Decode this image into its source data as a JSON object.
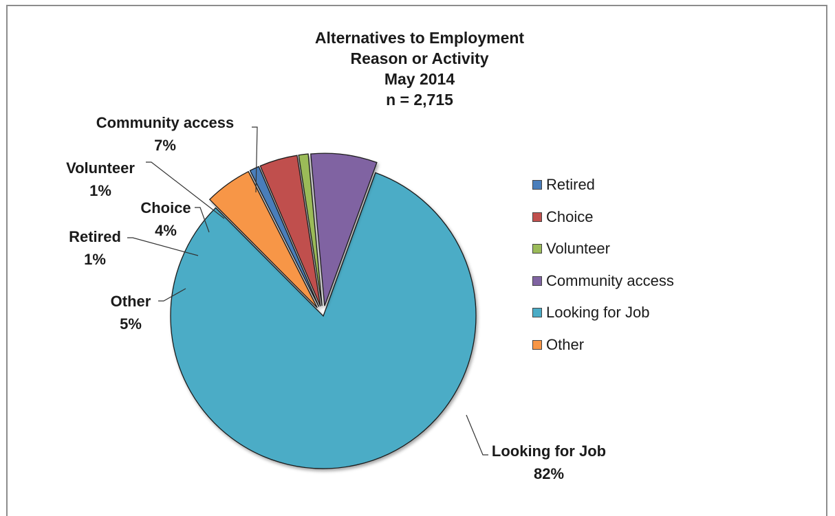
{
  "chart_data": {
    "type": "pie",
    "title": [
      "Alternatives to Employment",
      "Reason or Activity",
      "May 2014",
      "n = 2,715"
    ],
    "legend": [
      "Retired",
      "Choice",
      "Volunteer",
      "Community access",
      "Looking for Job",
      "Other"
    ],
    "slices": [
      {
        "name": "Retired",
        "label": "Retired",
        "percent_label": "1%",
        "value": 1,
        "color": "#4a7ebb"
      },
      {
        "name": "Choice",
        "label": "Choice",
        "percent_label": "4%",
        "value": 4,
        "color": "#c0504d"
      },
      {
        "name": "Volunteer",
        "label": "Volunteer",
        "percent_label": "1%",
        "value": 1,
        "color": "#9bbb59"
      },
      {
        "name": "Community access",
        "label": "Community access",
        "percent_label": "7%",
        "value": 7,
        "color": "#8064a2"
      },
      {
        "name": "Looking for Job",
        "label": "Looking for Job",
        "percent_label": "82%",
        "value": 82,
        "color": "#4bacc6"
      },
      {
        "name": "Other",
        "label": "Other",
        "percent_label": "5%",
        "value": 5,
        "color": "#f79646"
      }
    ],
    "legend_position": "right"
  }
}
